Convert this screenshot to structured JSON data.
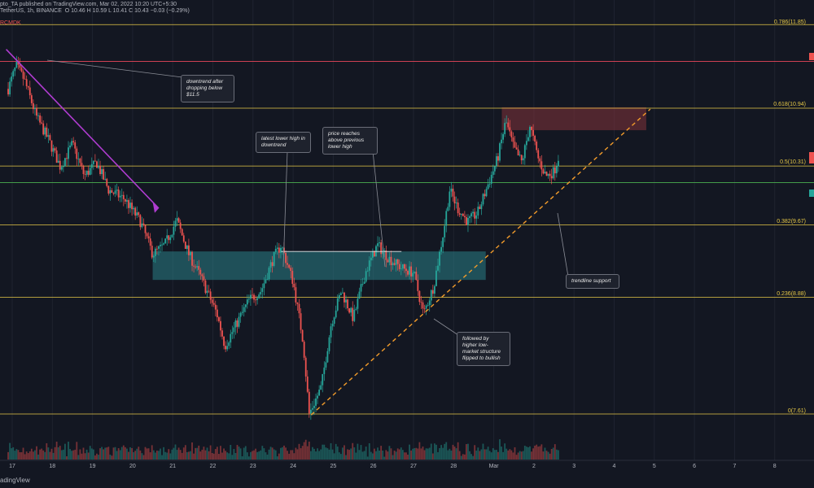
{
  "header": {
    "line1": "pto_TA published on TradingView.com, Mar 02, 2022 10:20 UTC+5:30",
    "line2": "TetherUS, 1h, BINANCE",
    "ohlc": "O 10.46  H 10.59  L 10.41  C 10.43  −0.03 (−0.29%)",
    "indicator": "RCMDK"
  },
  "footer": "adingView",
  "colors": {
    "background": "#131722",
    "up": "#26a69a",
    "down": "#ef5350",
    "fib": "#e6c847",
    "downtrend": "#b03cd1",
    "trendline": "#f39c2b",
    "zone_blue": "#2a7f86",
    "zone_red": "#7a3038",
    "resistance": "#e8475a"
  },
  "fib_labels": [
    {
      "id": "fib-786",
      "text": "0.786(11.85)",
      "price": 11.85
    },
    {
      "id": "fib-618",
      "text": "0.618(10.94)",
      "price": 10.94
    },
    {
      "id": "fib-5",
      "text": "0.5(10.31)",
      "price": 10.31
    },
    {
      "id": "fib-382",
      "text": "0.382(9.67)",
      "price": 9.67
    },
    {
      "id": "fib-236",
      "text": "0.236(8.88)",
      "price": 8.88
    },
    {
      "id": "fib-0",
      "text": "0(7.61)",
      "price": 7.61
    }
  ],
  "annotations": {
    "downtrend": "downtrend after dropping below $11.5",
    "lower_high": "latest lower high in downtrend",
    "price_reaches": "price reaches above previous lower high",
    "trendline": "trendline support",
    "higher_low": "followed by higher low- market structure flipped to bullish"
  },
  "chart_data": {
    "type": "candlestick",
    "symbol": "TetherUS",
    "timeframe": "1h",
    "exchange": "BINANCE",
    "x_ticks": [
      "17",
      "18",
      "19",
      "20",
      "21",
      "22",
      "23",
      "24",
      "25",
      "26",
      "27",
      "28",
      "Mar",
      "2",
      "3",
      "4",
      "5",
      "6",
      "7",
      "8"
    ],
    "fib_levels": [
      {
        "ratio": 0.786,
        "price": 11.85
      },
      {
        "ratio": 0.618,
        "price": 10.94
      },
      {
        "ratio": 0.5,
        "price": 10.31
      },
      {
        "ratio": 0.382,
        "price": 9.67
      },
      {
        "ratio": 0.236,
        "price": 8.88
      },
      {
        "ratio": 0,
        "price": 7.61
      }
    ],
    "horizontal_levels": [
      11.45,
      10.13
    ],
    "close_path": [
      {
        "day": 16.9,
        "close": 11.15
      },
      {
        "day": 17.1,
        "close": 11.4
      },
      {
        "day": 17.3,
        "close": 11.25
      },
      {
        "day": 17.6,
        "close": 10.85
      },
      {
        "day": 17.9,
        "close": 10.6
      },
      {
        "day": 18.2,
        "close": 10.3
      },
      {
        "day": 18.5,
        "close": 10.55
      },
      {
        "day": 18.8,
        "close": 10.2
      },
      {
        "day": 19.1,
        "close": 10.35
      },
      {
        "day": 19.4,
        "close": 10.05
      },
      {
        "day": 19.8,
        "close": 9.95
      },
      {
        "day": 20.2,
        "close": 9.7
      },
      {
        "day": 20.5,
        "close": 9.35
      },
      {
        "day": 20.8,
        "close": 9.45
      },
      {
        "day": 21.1,
        "close": 9.72
      },
      {
        "day": 21.4,
        "close": 9.35
      },
      {
        "day": 21.7,
        "close": 9.1
      },
      {
        "day": 22.1,
        "close": 8.7
      },
      {
        "day": 22.3,
        "close": 8.35
      },
      {
        "day": 22.6,
        "close": 8.6
      },
      {
        "day": 22.9,
        "close": 8.85
      },
      {
        "day": 23.2,
        "close": 8.95
      },
      {
        "day": 23.5,
        "close": 9.3
      },
      {
        "day": 23.7,
        "close": 9.45
      },
      {
        "day": 24.0,
        "close": 9.05
      },
      {
        "day": 24.25,
        "close": 8.4
      },
      {
        "day": 24.4,
        "close": 7.61
      },
      {
        "day": 24.7,
        "close": 7.9
      },
      {
        "day": 24.95,
        "close": 8.6
      },
      {
        "day": 25.2,
        "close": 8.95
      },
      {
        "day": 25.5,
        "close": 8.65
      },
      {
        "day": 25.8,
        "close": 9.15
      },
      {
        "day": 26.1,
        "close": 9.45
      },
      {
        "day": 26.4,
        "close": 9.3
      },
      {
        "day": 26.7,
        "close": 9.2
      },
      {
        "day": 27.0,
        "close": 9.15
      },
      {
        "day": 27.25,
        "close": 8.7
      },
      {
        "day": 27.5,
        "close": 9.0
      },
      {
        "day": 27.75,
        "close": 9.6
      },
      {
        "day": 27.9,
        "close": 10.05
      },
      {
        "day": 28.1,
        "close": 9.85
      },
      {
        "day": 28.35,
        "close": 9.7
      },
      {
        "day": 28.6,
        "close": 9.8
      },
      {
        "day": 28.85,
        "close": 10.1
      },
      {
        "day": 29.1,
        "close": 10.4
      },
      {
        "day": 29.3,
        "close": 10.8
      },
      {
        "day": 29.5,
        "close": 10.5
      },
      {
        "day": 29.7,
        "close": 10.35
      },
      {
        "day": 29.9,
        "close": 10.75
      },
      {
        "day": 30.1,
        "close": 10.4
      },
      {
        "day": 30.3,
        "close": 10.2
      },
      {
        "day": 30.5,
        "close": 10.25
      },
      {
        "day": 30.65,
        "close": 10.46
      }
    ],
    "zones": [
      {
        "name": "previous lower high zone",
        "price_low": 9.07,
        "price_high": 9.38,
        "day_start": 20.5,
        "day_end": 28.8
      },
      {
        "name": "resistance zone",
        "price_low": 10.7,
        "price_high": 10.95,
        "day_start": 29.2,
        "day_end": 32.8
      }
    ]
  }
}
